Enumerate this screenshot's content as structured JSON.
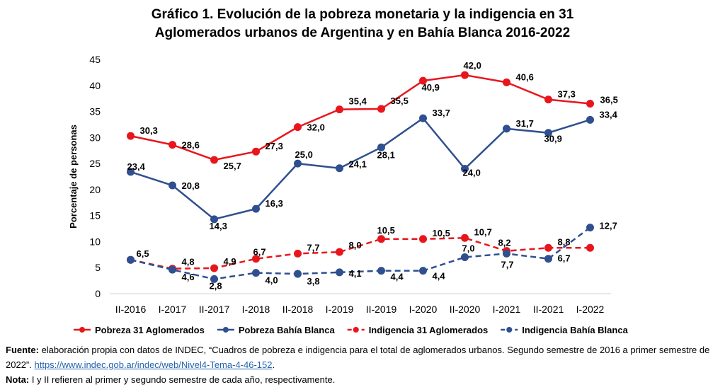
{
  "chart_data": {
    "type": "line",
    "title_line1": "Gráfico 1. Evolución de la pobreza monetaria y la indigencia en 31",
    "title_line2": "Aglomerados urbanos de Argentina y en Bahía Blanca 2016-2022",
    "ylabel": "Porcentaje de personas",
    "xlabel": "",
    "ylim": [
      0,
      45
    ],
    "yticks": [
      0,
      5,
      10,
      15,
      20,
      25,
      30,
      35,
      40,
      45
    ],
    "grid": false,
    "legend_position": "bottom",
    "categories": [
      "II-2016",
      "I-2017",
      "II-2017",
      "I-2018",
      "II-2018",
      "I-2019",
      "II-2019",
      "I-2020",
      "II-2020",
      "I-2021",
      "II-2021",
      "I-2022"
    ],
    "series": [
      {
        "name": "Pobreza 31 Aglomerados",
        "color": "#e8161c",
        "dashed": false,
        "values": [
          30.3,
          28.6,
          25.7,
          27.3,
          32.0,
          35.4,
          35.5,
          40.9,
          42.0,
          40.6,
          37.3,
          36.5
        ],
        "labels": [
          "30,3",
          "28,6",
          "25,7",
          "27,3",
          "32,0",
          "35,4",
          "35,5",
          "40,9",
          "42,0",
          "40,6",
          "37,3",
          "36,5"
        ]
      },
      {
        "name": "Pobreza Bahía Blanca",
        "color": "#2f4f8f",
        "dashed": false,
        "values": [
          23.4,
          20.8,
          14.3,
          16.3,
          25.0,
          24.1,
          28.1,
          33.7,
          24.0,
          31.7,
          30.9,
          33.4
        ],
        "labels": [
          "23,4",
          "20,8",
          "14,3",
          "16,3",
          "25,0",
          "24,1",
          "28,1",
          "33,7",
          "24,0",
          "31,7",
          "30,9",
          "33,4"
        ]
      },
      {
        "name": "Indigencia 31 Aglomerados",
        "color": "#e8161c",
        "dashed": true,
        "values": [
          6.5,
          4.8,
          4.9,
          6.7,
          7.7,
          8.0,
          10.5,
          10.5,
          10.7,
          8.2,
          8.8,
          8.8
        ],
        "labels": [
          "6,5",
          "4,8",
          "4,9",
          "6,7",
          "7,7",
          "8,0",
          "10,5",
          "10,5",
          "10,7",
          "8,2",
          "8,8",
          ""
        ]
      },
      {
        "name": "Indigencia Bahía Blanca",
        "color": "#2f4f8f",
        "dashed": true,
        "values": [
          6.5,
          4.6,
          2.8,
          4.0,
          3.8,
          4.1,
          4.4,
          4.4,
          7.0,
          7.7,
          6.7,
          12.7
        ],
        "labels": [
          "",
          "4,6",
          "2,8",
          "4,0",
          "3,8",
          "4,1",
          "4,4",
          "4,4",
          "7,0",
          "7,7",
          "6,7",
          "12,7"
        ]
      }
    ]
  },
  "footer": {
    "source_label": "Fuente:",
    "source_text": " elaboración propia con datos de INDEC, “Cuadros de pobreza e indigencia para el total de aglomerados urbanos. Segundo semestre de 2016 a primer semestre de 2022”. ",
    "source_link": "https://www.indec.gob.ar/indec/web/Nivel4-Tema-4-46-152",
    "source_end": ".",
    "note_label": "Nota:",
    "note_text": " I y II refieren al primer y segundo semestre de cada año, respectivamente."
  }
}
